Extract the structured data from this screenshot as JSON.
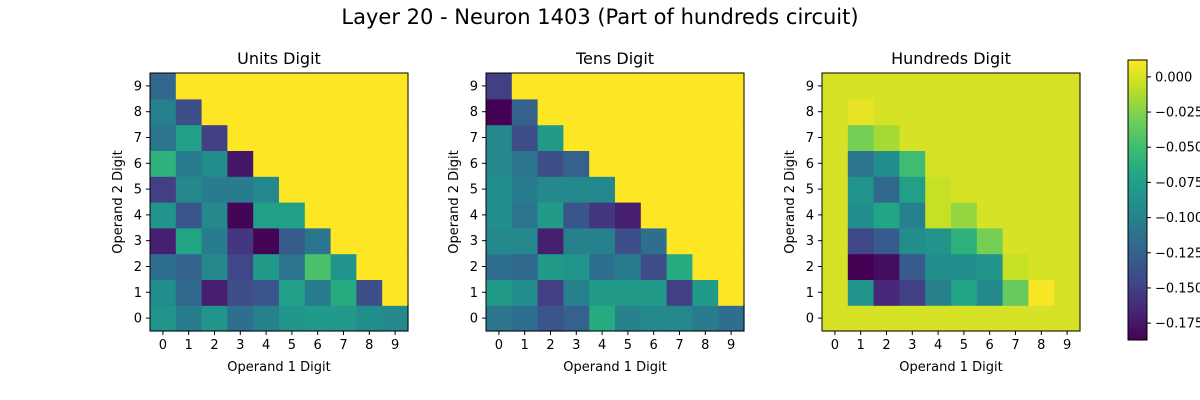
{
  "figure": {
    "suptitle": "Layer 20 - Neuron 1403 (Part of hundreds circuit)"
  },
  "chart_data": {
    "type": "heatmap",
    "xlabel": "Operand 1 Digit",
    "ylabel": "Operand 2 Digit",
    "x_ticks": [
      "0",
      "1",
      "2",
      "3",
      "4",
      "5",
      "6",
      "7",
      "8",
      "9"
    ],
    "y_ticks": [
      "0",
      "1",
      "2",
      "3",
      "4",
      "5",
      "6",
      "7",
      "8",
      "9"
    ],
    "colormap": "viridis",
    "color_range": [
      -0.187,
      0.012
    ],
    "colorbar": {
      "ticks": [
        0.0,
        -0.025,
        -0.05,
        -0.075,
        -0.1,
        -0.125,
        -0.15,
        -0.175
      ],
      "tick_labels": [
        "0.000",
        "−0.025",
        "−0.050",
        "−0.075",
        "−0.100",
        "−0.125",
        "−0.150",
        "−0.175"
      ]
    },
    "row_order_note": "values rows listed for Operand 2 Digit 0 to 9; columns Operand 1 Digit 0 to 9",
    "panels": [
      {
        "title": "Units Digit",
        "values": [
          [
            -0.085,
            -0.105,
            -0.085,
            -0.115,
            -0.1,
            -0.085,
            -0.08,
            -0.08,
            -0.09,
            -0.095
          ],
          [
            -0.09,
            -0.12,
            -0.17,
            -0.14,
            -0.135,
            -0.075,
            -0.105,
            -0.065,
            -0.14,
            0.012
          ],
          [
            -0.115,
            -0.125,
            -0.095,
            -0.145,
            -0.08,
            -0.11,
            -0.045,
            -0.085,
            0.012,
            0.012
          ],
          [
            -0.17,
            -0.07,
            -0.105,
            -0.155,
            -0.185,
            -0.13,
            -0.11,
            0.012,
            0.012,
            0.012
          ],
          [
            -0.085,
            -0.135,
            -0.095,
            -0.185,
            -0.075,
            -0.075,
            0.012,
            0.012,
            0.012,
            0.012
          ],
          [
            -0.15,
            -0.095,
            -0.105,
            -0.105,
            -0.095,
            0.012,
            0.012,
            0.012,
            0.012,
            0.012
          ],
          [
            -0.06,
            -0.105,
            -0.09,
            -0.175,
            0.012,
            0.012,
            0.012,
            0.012,
            0.012,
            0.012
          ],
          [
            -0.11,
            -0.075,
            -0.15,
            0.012,
            0.012,
            0.012,
            0.012,
            0.012,
            0.012,
            0.012
          ],
          [
            -0.1,
            -0.14,
            0.012,
            0.012,
            0.012,
            0.012,
            0.012,
            0.012,
            0.012,
            0.012
          ],
          [
            -0.12,
            0.012,
            0.012,
            0.012,
            0.012,
            0.012,
            0.012,
            0.012,
            0.012,
            0.012
          ]
        ]
      },
      {
        "title": "Tens Digit",
        "values": [
          [
            -0.11,
            -0.115,
            -0.135,
            -0.125,
            -0.065,
            -0.1,
            -0.095,
            -0.095,
            -0.105,
            -0.115
          ],
          [
            -0.08,
            -0.09,
            -0.15,
            -0.1,
            -0.08,
            -0.08,
            -0.08,
            -0.15,
            -0.08,
            0.012
          ],
          [
            -0.115,
            -0.12,
            -0.08,
            -0.085,
            -0.115,
            -0.105,
            -0.14,
            -0.065,
            0.012,
            0.012
          ],
          [
            -0.095,
            -0.095,
            -0.17,
            -0.1,
            -0.1,
            -0.14,
            -0.115,
            0.012,
            0.012,
            0.012
          ],
          [
            -0.09,
            -0.11,
            -0.08,
            -0.135,
            -0.155,
            -0.17,
            0.012,
            0.012,
            0.012,
            0.012
          ],
          [
            -0.09,
            -0.105,
            -0.095,
            -0.095,
            -0.095,
            0.012,
            0.012,
            0.012,
            0.012,
            0.012
          ],
          [
            -0.095,
            -0.11,
            -0.14,
            -0.125,
            0.012,
            0.012,
            0.012,
            0.012,
            0.012,
            0.012
          ],
          [
            -0.095,
            -0.14,
            -0.08,
            0.012,
            0.012,
            0.012,
            0.012,
            0.012,
            0.012,
            0.012
          ],
          [
            -0.187,
            -0.125,
            0.012,
            0.012,
            0.012,
            0.012,
            0.012,
            0.012,
            0.012,
            0.012
          ],
          [
            -0.15,
            0.012,
            0.012,
            0.012,
            0.012,
            0.012,
            0.012,
            0.012,
            0.012,
            0.012
          ]
        ]
      },
      {
        "title": "Hundreds Digit",
        "values": [
          [
            0.0,
            0.0,
            0.0,
            0.0,
            0.0,
            0.0,
            0.0,
            0.0,
            0.0,
            0.0
          ],
          [
            0.0,
            -0.085,
            -0.165,
            -0.15,
            -0.1,
            -0.07,
            -0.095,
            -0.035,
            0.01,
            0.0
          ],
          [
            0.0,
            -0.187,
            -0.18,
            -0.13,
            -0.09,
            -0.09,
            -0.085,
            -0.005,
            0.0,
            0.0
          ],
          [
            0.0,
            -0.145,
            -0.13,
            -0.09,
            -0.085,
            -0.06,
            -0.03,
            0.0,
            0.0,
            0.0
          ],
          [
            0.0,
            -0.09,
            -0.07,
            -0.1,
            -0.005,
            -0.02,
            0.0,
            0.0,
            0.0,
            0.0
          ],
          [
            0.0,
            -0.085,
            -0.12,
            -0.075,
            -0.005,
            0.0,
            0.0,
            0.0,
            0.0,
            0.0
          ],
          [
            0.0,
            -0.11,
            -0.09,
            -0.05,
            0.0,
            0.0,
            0.0,
            0.0,
            0.0,
            0.0
          ],
          [
            0.0,
            -0.03,
            -0.015,
            0.0,
            0.0,
            0.0,
            0.0,
            0.0,
            0.0,
            0.0
          ],
          [
            0.0,
            0.005,
            0.0,
            0.0,
            0.0,
            0.0,
            0.0,
            0.0,
            0.0,
            0.0
          ],
          [
            0.0,
            0.0,
            0.0,
            0.0,
            0.0,
            0.0,
            0.0,
            0.0,
            0.0,
            0.0
          ]
        ]
      }
    ]
  }
}
